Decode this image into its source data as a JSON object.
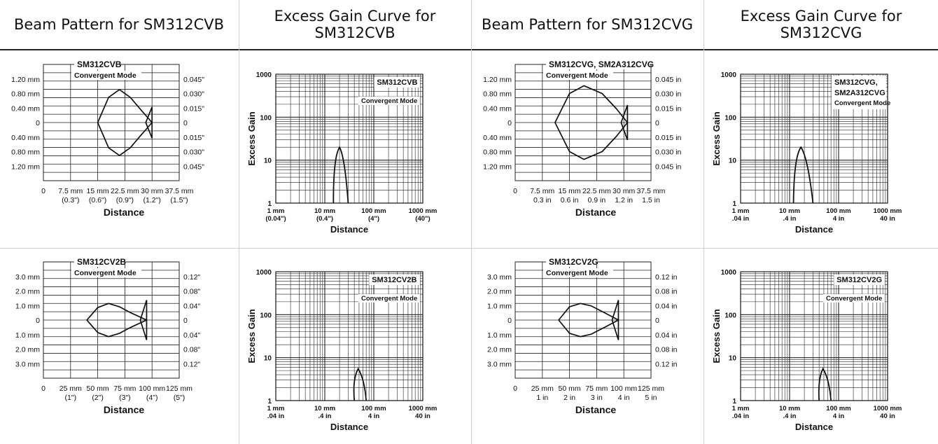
{
  "headers": [
    "Beam Pattern for SM312CVB",
    "Excess Gain Curve for SM312CVB",
    "Beam Pattern for SM312CVG",
    "Excess Gain Curve for SM312CVG"
  ],
  "chart_data": [
    {
      "type": "line",
      "panel": "beam-cvb",
      "model": "SM312CVB",
      "mode": "Convergent Mode",
      "x_ticks": [
        [
          "0",
          ""
        ],
        [
          "7.5 mm",
          "(0.3\")"
        ],
        [
          "15 mm",
          "(0.6\")"
        ],
        [
          "22.5 mm",
          "(0.9\")"
        ],
        [
          "30 mm",
          "(1.2\")"
        ],
        [
          "37.5 mm",
          "(1.5\")"
        ]
      ],
      "y_left": [
        "1.20 mm",
        "0.80 mm",
        "0.40 mm",
        "0",
        "0.40 mm",
        "0.80 mm",
        "1.20 mm"
      ],
      "y_right": [
        "0.045\"",
        "0.030\"",
        "0.015\"",
        "0",
        "0.015\"",
        "0.030\"",
        "0.045\""
      ],
      "xlabel": "Distance",
      "xlim": [
        0,
        37.5
      ],
      "ylim": [
        -1.5,
        1.5
      ],
      "outline": [
        [
          15,
          0
        ],
        [
          18,
          0.65
        ],
        [
          21,
          0.85
        ],
        [
          24,
          0.65
        ],
        [
          27,
          0.32
        ],
        [
          30,
          0
        ]
      ],
      "tail": [
        [
          30,
          0.4
        ],
        [
          30,
          -0.4
        ]
      ],
      "grid": true
    },
    {
      "type": "line",
      "panel": "gain-cvb",
      "model": "SM312CVB",
      "mode": "Convergent Mode",
      "xscale": "log",
      "yscale": "log",
      "xlim": [
        1,
        1000
      ],
      "ylim": [
        1,
        1000
      ],
      "x_ticks": [
        [
          "1 mm",
          "(0.04\")"
        ],
        [
          "10 mm",
          "(0.4\")"
        ],
        [
          "100 mm",
          "(4\")"
        ],
        [
          "1000 mm",
          "(40\")"
        ]
      ],
      "y_ticks": [
        "1000",
        "100",
        "10",
        "1"
      ],
      "xlabel": "Distance",
      "ylabel": "Excess Gain",
      "x": [
        15,
        17,
        20,
        24,
        30
      ],
      "y": [
        1,
        8,
        20,
        8,
        1
      ],
      "grid": true
    },
    {
      "type": "line",
      "panel": "beam-cvg",
      "model": "SM312CVG, SM2A312CVG",
      "mode": "Convergent Mode",
      "x_ticks": [
        [
          "0",
          ""
        ],
        [
          "7.5 mm",
          "0.3 in"
        ],
        [
          "15 mm",
          "0.6 in"
        ],
        [
          "22.5 mm",
          "0.9 in"
        ],
        [
          "30 mm",
          "1.2 in"
        ],
        [
          "37.5 mm",
          "1.5 in"
        ]
      ],
      "y_left": [
        "1.20 mm",
        "0.80 mm",
        "0.40 mm",
        "0",
        "0.40 mm",
        "0.80 mm",
        "1.20 mm"
      ],
      "y_right": [
        "0.045 in",
        "0.030 in",
        "0.015 in",
        "0",
        "0.015 in",
        "0.030 in",
        "0.045 in"
      ],
      "xlabel": "Distance",
      "xlim": [
        0,
        37.5
      ],
      "ylim": [
        -1.5,
        1.5
      ],
      "outline": [
        [
          11,
          0
        ],
        [
          15,
          0.75
        ],
        [
          19,
          0.95
        ],
        [
          24,
          0.75
        ],
        [
          28,
          0.35
        ],
        [
          31,
          0
        ]
      ],
      "tail": [
        [
          31,
          0.45
        ],
        [
          31,
          -0.45
        ]
      ],
      "grid": true
    },
    {
      "type": "line",
      "panel": "gain-cvg",
      "model": "SM312CVG, SM2A312CVG",
      "mode": "Convergent Mode",
      "xscale": "log",
      "yscale": "log",
      "xlim": [
        1,
        1000
      ],
      "ylim": [
        1,
        1000
      ],
      "x_ticks": [
        [
          "1 mm",
          ".04 in"
        ],
        [
          "10 mm",
          ".4 in"
        ],
        [
          "100 mm",
          "4 in"
        ],
        [
          "1000 mm",
          "40 in"
        ]
      ],
      "y_ticks": [
        "1000",
        "100",
        "10",
        "1"
      ],
      "xlabel": "Distance",
      "ylabel": "Excess Gain",
      "x": [
        12,
        14,
        17,
        22,
        30
      ],
      "y": [
        1,
        8,
        20,
        8,
        1
      ],
      "grid": true
    },
    {
      "type": "line",
      "panel": "beam-cv2b",
      "model": "SM312CV2B",
      "mode": "Convergent Mode",
      "x_ticks": [
        [
          "0",
          ""
        ],
        [
          "25 mm",
          "(1\")"
        ],
        [
          "50 mm",
          "(2\")"
        ],
        [
          "75 mm",
          "(3\")"
        ],
        [
          "100 mm",
          "(4\")"
        ],
        [
          "125 mm",
          "(5\")"
        ]
      ],
      "y_left": [
        "3.0 mm",
        "2.0 mm",
        "1.0 mm",
        "0",
        "1.0 mm",
        "2.0 mm",
        "3.0 mm"
      ],
      "y_right": [
        "0.12\"",
        "0.08\"",
        "0.04\"",
        "0",
        "0.04\"",
        "0.08\"",
        "0.12\""
      ],
      "xlabel": "Distance",
      "xlim": [
        0,
        125
      ],
      "ylim": [
        -3.5,
        3.5
      ],
      "outline": [
        [
          40,
          0
        ],
        [
          50,
          0.75
        ],
        [
          60,
          1.0
        ],
        [
          70,
          0.8
        ],
        [
          80,
          0.45
        ],
        [
          95,
          0
        ]
      ],
      "tail": [
        [
          95,
          1.2
        ],
        [
          95,
          -1.2
        ]
      ],
      "grid": true
    },
    {
      "type": "line",
      "panel": "gain-cv2b",
      "model": "SM312CV2B",
      "mode": "Convergent Mode",
      "xscale": "log",
      "yscale": "log",
      "xlim": [
        1,
        1000
      ],
      "ylim": [
        1,
        1000
      ],
      "x_ticks": [
        [
          "1 mm",
          ".04 in"
        ],
        [
          "10 mm",
          ".4 in"
        ],
        [
          "100 mm",
          "4 in"
        ],
        [
          "1000 mm",
          "40 in"
        ]
      ],
      "y_ticks": [
        "1000",
        "100",
        "10",
        "1"
      ],
      "xlabel": "Distance",
      "ylabel": "Excess Gain",
      "x": [
        40,
        42,
        48,
        60,
        70
      ],
      "y": [
        1,
        3,
        5.5,
        3,
        1
      ],
      "grid": true
    },
    {
      "type": "line",
      "panel": "beam-cv2g",
      "model": "SM312CV2G",
      "mode": "Convergent Mode",
      "x_ticks": [
        [
          "0",
          ""
        ],
        [
          "25 mm",
          "1 in"
        ],
        [
          "50 mm",
          "2 in"
        ],
        [
          "75 mm",
          "3 in"
        ],
        [
          "100 mm",
          "4 in"
        ],
        [
          "125 mm",
          "5 in"
        ]
      ],
      "y_left": [
        "3.0 mm",
        "2.0 mm",
        "1.0 mm",
        "0",
        "1.0 mm",
        "2.0 mm",
        "3.0 mm"
      ],
      "y_right": [
        "0.12 in",
        "0.08 in",
        "0.04 in",
        "0",
        "0.04 in",
        "0.08 in",
        "0.12 in"
      ],
      "xlabel": "Distance",
      "xlim": [
        0,
        125
      ],
      "ylim": [
        -3.5,
        3.5
      ],
      "outline": [
        [
          40,
          0
        ],
        [
          50,
          0.8
        ],
        [
          60,
          1.0
        ],
        [
          70,
          0.85
        ],
        [
          82,
          0.45
        ],
        [
          95,
          0
        ]
      ],
      "tail": [
        [
          95,
          1.2
        ],
        [
          95,
          -1.2
        ]
      ],
      "grid": true
    },
    {
      "type": "line",
      "panel": "gain-cv2g",
      "model": "SM312CV2G",
      "mode": "Convergent Mode",
      "xscale": "log",
      "yscale": "log",
      "xlim": [
        1,
        1000
      ],
      "ylim": [
        1,
        1000
      ],
      "x_ticks": [
        [
          "1 mm",
          ".04 in"
        ],
        [
          "10 mm",
          ".4 in"
        ],
        [
          "100 mm",
          "4 in"
        ],
        [
          "1000 mm",
          "40 in"
        ]
      ],
      "y_ticks": [
        "1000",
        "100",
        "10",
        "1"
      ],
      "xlabel": "Distance",
      "ylabel": "Excess Gain",
      "x": [
        40,
        43,
        48,
        60,
        70
      ],
      "y": [
        1,
        3.5,
        5.5,
        3,
        1
      ],
      "grid": true
    }
  ]
}
